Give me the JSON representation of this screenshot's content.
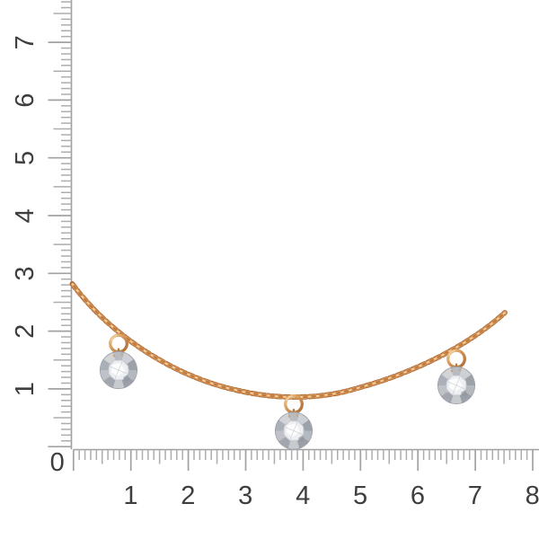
{
  "photo": {
    "subject": "gold chain necklace with three round faceted crystal charms",
    "background_color": "#ffffff",
    "chain": {
      "color_dark": "#aa6a36",
      "color_mid": "#d9965a",
      "color_highlight": "#f3d4a4"
    },
    "charms": [
      {
        "position": "left"
      },
      {
        "position": "center"
      },
      {
        "position": "right"
      }
    ],
    "stone_color": "#c3c6cb",
    "ring_gold_color": "#cf9053"
  },
  "rulers": {
    "corner_label": "0",
    "horizontal": {
      "labels": [
        "1",
        "2",
        "3",
        "4",
        "5",
        "6",
        "7",
        "8"
      ]
    },
    "vertical": {
      "labels": [
        "1",
        "2",
        "3",
        "4",
        "5",
        "6",
        "7"
      ]
    },
    "tick_color": "#adadad",
    "label_color": "#3e3e3e"
  }
}
